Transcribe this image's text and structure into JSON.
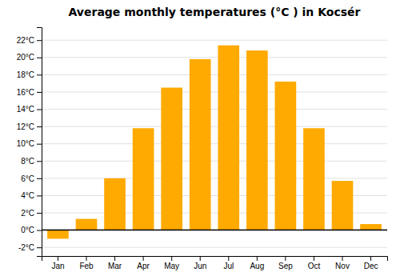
{
  "chart_data": {
    "type": "bar",
    "title": "Average monthly temperatures (°C ) in Kocsér",
    "categories": [
      "Jan",
      "Feb",
      "Mar",
      "Apr",
      "May",
      "Jun",
      "Jul",
      "Aug",
      "Sep",
      "Oct",
      "Nov",
      "Dec"
    ],
    "values": [
      -1.0,
      1.3,
      6.0,
      11.8,
      16.5,
      19.8,
      21.4,
      20.8,
      17.2,
      11.8,
      5.7,
      0.7
    ],
    "color": "#FFAA00",
    "ylim": [
      -3.0,
      23.5
    ],
    "yticks": [
      {
        "value": -2,
        "label": "-2°C"
      },
      {
        "value": 0,
        "label": "0°C"
      },
      {
        "value": 2,
        "label": "2°C"
      },
      {
        "value": 4,
        "label": "4°C"
      },
      {
        "value": 6,
        "label": "6°C"
      },
      {
        "value": 8,
        "label": "8°C"
      },
      {
        "value": 10,
        "label": "10°C"
      },
      {
        "value": 12,
        "label": "12°C"
      },
      {
        "value": 14,
        "label": "14°C"
      },
      {
        "value": 16,
        "label": "16°C"
      },
      {
        "value": 18,
        "label": "18°C"
      },
      {
        "value": 20,
        "label": "20°C"
      },
      {
        "value": 22,
        "label": "22°C"
      }
    ],
    "grid": true
  }
}
